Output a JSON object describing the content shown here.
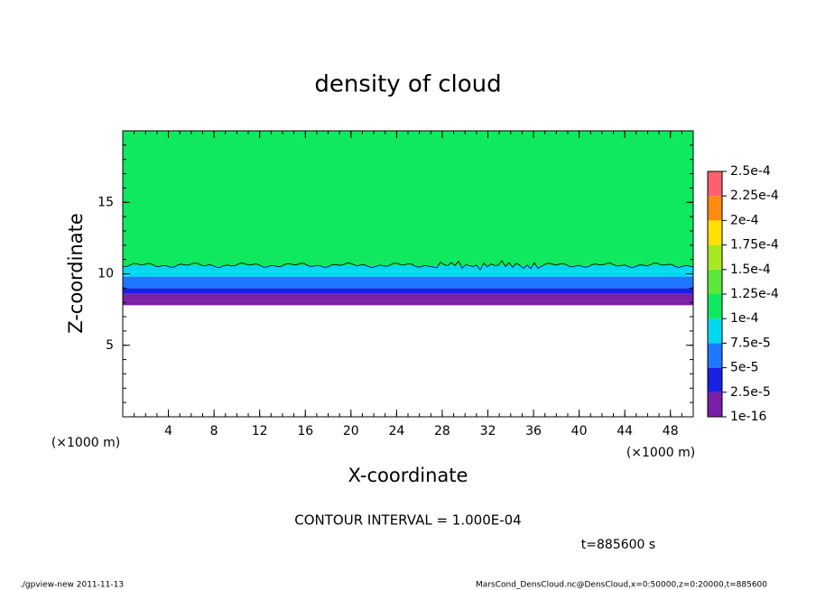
{
  "chart_data": {
    "type": "contour",
    "title": "density of cloud",
    "xlabel": "X-coordinate",
    "ylabel": "Z-coordinate",
    "xunit": "(×1000 m)",
    "yunit": "(×1000 m)",
    "xlim": [
      0,
      50
    ],
    "ylim": [
      0,
      20
    ],
    "xticks": [
      4,
      8,
      12,
      16,
      20,
      24,
      28,
      32,
      36,
      40,
      44,
      48
    ],
    "yticks": [
      5,
      10,
      15
    ],
    "z_edges": [
      7.8,
      8.1,
      8.6,
      9.0,
      9.4,
      9.8,
      10.2,
      10.6,
      20
    ],
    "values": [
      1.2e-05,
      2e-05,
      3.5e-05,
      5.5e-05,
      7e-05,
      8.5e-05,
      9.5e-05,
      0.000115
    ],
    "contour_level": 0.0001,
    "levels": [
      1e-16,
      {
        "value": 2.5e-05,
        "label": "2.5e-5"
      },
      {
        "value": 5e-05,
        "label": "5e-5"
      },
      {
        "value": 7.5e-05,
        "label": "7.5e-5"
      },
      {
        "value": 0.0001,
        "label": "1e-4"
      },
      {
        "value": 0.000125,
        "label": "1.25e-4"
      },
      {
        "value": 0.00015,
        "label": "1.5e-4"
      },
      {
        "value": 0.000175,
        "label": "1.75e-4"
      },
      {
        "value": 0.0002,
        "label": "2e-4"
      },
      {
        "value": 0.000225,
        "label": "2.25e-4"
      },
      {
        "value": 0.00025,
        "label": "2.5e-4"
      }
    ],
    "colors": [
      "#7a1fa8",
      "#1a20e0",
      "#1e78ff",
      "#00d8f0",
      "#10e860",
      "#5ae83a",
      "#a8e81e",
      "#ffe000",
      "#ff8c10",
      "#ff6070"
    ],
    "annotation": "CONTOUR INTERVAL = 1.000E-04",
    "time": "t=885600 s",
    "footer_left": "./gpview-new  2011-11-13",
    "footer_right": "MarsCond_DensCloud.nc@DensCloud,x=0:50000,z=0:20000,t=885600"
  }
}
